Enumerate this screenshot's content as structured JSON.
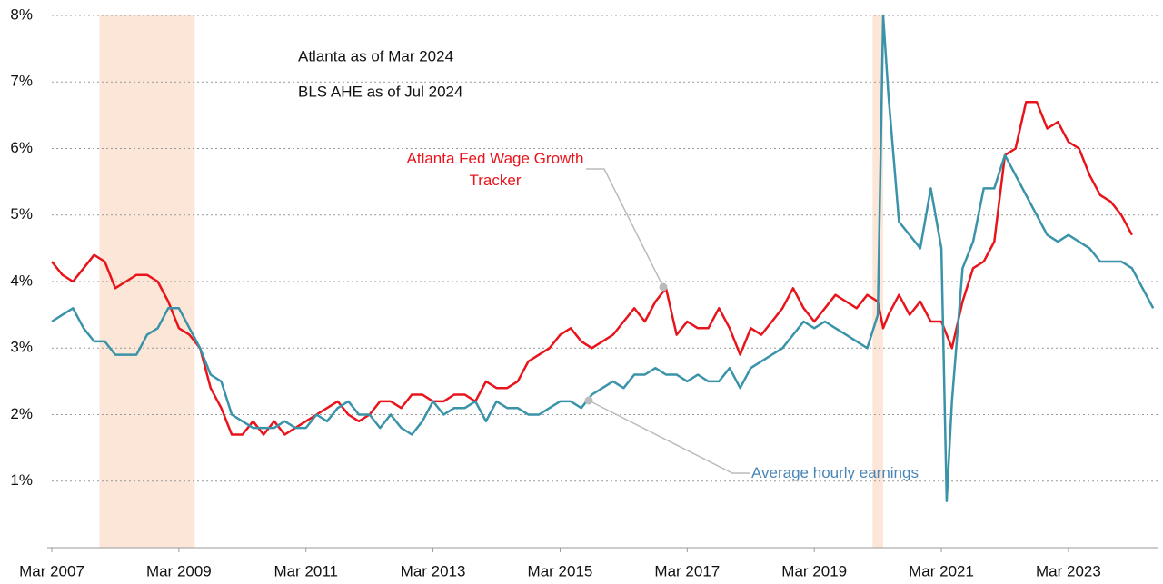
{
  "chart_data": {
    "type": "line",
    "annotations": [
      "Atlanta as of Mar 2024",
      "BLS AHE as of Jul 2024"
    ],
    "x": [
      "2007-03",
      "2007-05",
      "2007-07",
      "2007-09",
      "2007-11",
      "2008-01",
      "2008-03",
      "2008-05",
      "2008-07",
      "2008-09",
      "2008-11",
      "2009-01",
      "2009-03",
      "2009-05",
      "2009-07",
      "2009-09",
      "2009-11",
      "2010-01",
      "2010-03",
      "2010-05",
      "2010-07",
      "2010-09",
      "2010-11",
      "2011-01",
      "2011-03",
      "2011-05",
      "2011-07",
      "2011-09",
      "2011-11",
      "2012-01",
      "2012-03",
      "2012-05",
      "2012-07",
      "2012-09",
      "2012-11",
      "2013-01",
      "2013-03",
      "2013-05",
      "2013-07",
      "2013-09",
      "2013-11",
      "2014-01",
      "2014-03",
      "2014-05",
      "2014-07",
      "2014-09",
      "2014-11",
      "2015-01",
      "2015-03",
      "2015-05",
      "2015-07",
      "2015-09",
      "2015-11",
      "2016-01",
      "2016-03",
      "2016-05",
      "2016-07",
      "2016-09",
      "2016-11",
      "2017-01",
      "2017-03",
      "2017-05",
      "2017-07",
      "2017-09",
      "2017-11",
      "2018-01",
      "2018-03",
      "2018-05",
      "2018-07",
      "2018-09",
      "2018-11",
      "2019-01",
      "2019-03",
      "2019-05",
      "2019-07",
      "2019-09",
      "2019-11",
      "2020-01",
      "2020-03",
      "2020-04",
      "2020-05",
      "2020-07",
      "2020-09",
      "2020-11",
      "2021-01",
      "2021-03",
      "2021-04",
      "2021-05",
      "2021-07",
      "2021-09",
      "2021-11",
      "2022-01",
      "2022-03",
      "2022-05",
      "2022-07",
      "2022-09",
      "2022-11",
      "2023-01",
      "2023-03",
      "2023-05",
      "2023-07",
      "2023-09",
      "2023-11",
      "2024-01",
      "2024-03",
      "2024-05",
      "2024-07"
    ],
    "series": [
      {
        "name": "Atlanta Fed Wage Growth Tracker",
        "color": "#e8141b",
        "values": [
          4.3,
          4.1,
          4.0,
          4.2,
          4.4,
          4.3,
          3.9,
          4.0,
          4.1,
          4.1,
          4.0,
          3.7,
          3.3,
          3.2,
          3.0,
          2.4,
          2.1,
          1.7,
          1.7,
          1.9,
          1.7,
          1.9,
          1.7,
          1.8,
          1.9,
          2.0,
          2.1,
          2.2,
          2.0,
          1.9,
          2.0,
          2.2,
          2.2,
          2.1,
          2.3,
          2.3,
          2.2,
          2.2,
          2.3,
          2.3,
          2.2,
          2.5,
          2.4,
          2.4,
          2.5,
          2.8,
          2.9,
          3.0,
          3.2,
          3.3,
          3.1,
          3.0,
          3.1,
          3.2,
          3.4,
          3.6,
          3.4,
          3.7,
          3.9,
          3.2,
          3.4,
          3.3,
          3.3,
          3.6,
          3.3,
          2.9,
          3.3,
          3.2,
          3.4,
          3.6,
          3.9,
          3.6,
          3.4,
          3.6,
          3.8,
          3.7,
          3.6,
          3.8,
          3.7,
          3.3,
          3.5,
          3.8,
          3.5,
          3.7,
          3.4,
          3.4,
          3.2,
          3.0,
          3.7,
          4.2,
          4.3,
          4.6,
          5.9,
          6.0,
          6.7,
          6.7,
          6.3,
          6.4,
          6.1,
          6.0,
          5.6,
          5.3,
          5.2,
          5.0,
          4.7,
          null,
          null
        ]
      },
      {
        "name": "Average hourly earnings",
        "color": "#3a93a8",
        "values": [
          3.4,
          3.5,
          3.6,
          3.3,
          3.1,
          3.1,
          2.9,
          2.9,
          2.9,
          3.2,
          3.3,
          3.6,
          3.6,
          3.3,
          3.0,
          2.6,
          2.5,
          2.0,
          1.9,
          1.8,
          1.8,
          1.8,
          1.9,
          1.8,
          1.8,
          2.0,
          1.9,
          2.1,
          2.2,
          2.0,
          2.0,
          1.8,
          2.0,
          1.8,
          1.7,
          1.9,
          2.2,
          2.0,
          2.1,
          2.1,
          2.2,
          1.9,
          2.2,
          2.1,
          2.1,
          2.0,
          2.0,
          2.1,
          2.2,
          2.2,
          2.1,
          2.3,
          2.4,
          2.5,
          2.4,
          2.6,
          2.6,
          2.7,
          2.6,
          2.6,
          2.5,
          2.6,
          2.5,
          2.5,
          2.7,
          2.4,
          2.7,
          2.8,
          2.9,
          3.0,
          3.2,
          3.4,
          3.3,
          3.4,
          3.3,
          3.2,
          3.1,
          3.0,
          3.5,
          8.0,
          6.8,
          4.9,
          4.7,
          4.5,
          5.4,
          4.5,
          0.7,
          2.2,
          4.2,
          4.6,
          5.4,
          5.4,
          5.9,
          5.6,
          5.3,
          5.0,
          4.7,
          4.6,
          4.7,
          4.6,
          4.5,
          4.3,
          4.3,
          4.3,
          4.2,
          3.9,
          3.6
        ]
      }
    ],
    "recessions": [
      {
        "start": "2007-12",
        "end": "2009-06"
      },
      {
        "start": "2020-02",
        "end": "2020-04"
      }
    ],
    "recession_color": "#fce6d8",
    "xlim": [
      "2007-03",
      "2024-08"
    ],
    "xticks": [
      {
        "value": "2007-03",
        "label": "Mar 2007"
      },
      {
        "value": "2009-03",
        "label": "Mar 2009"
      },
      {
        "value": "2011-03",
        "label": "Mar 2011"
      },
      {
        "value": "2013-03",
        "label": "Mar 2013"
      },
      {
        "value": "2015-03",
        "label": "Mar 2015"
      },
      {
        "value": "2017-03",
        "label": "Mar 2017"
      },
      {
        "value": "2019-03",
        "label": "Mar 2019"
      },
      {
        "value": "2021-03",
        "label": "Mar 2021"
      },
      {
        "value": "2023-03",
        "label": "Mar 2023"
      }
    ],
    "ylim": [
      0,
      8
    ],
    "yticks": [
      {
        "value": 1,
        "label": "1%"
      },
      {
        "value": 2,
        "label": "2%"
      },
      {
        "value": 3,
        "label": "3%"
      },
      {
        "value": 4,
        "label": "4%"
      },
      {
        "value": 5,
        "label": "5%"
      },
      {
        "value": 6,
        "label": "6%"
      },
      {
        "value": 7,
        "label": "7%"
      },
      {
        "value": 8,
        "label": "8%"
      }
    ],
    "grid": true
  }
}
